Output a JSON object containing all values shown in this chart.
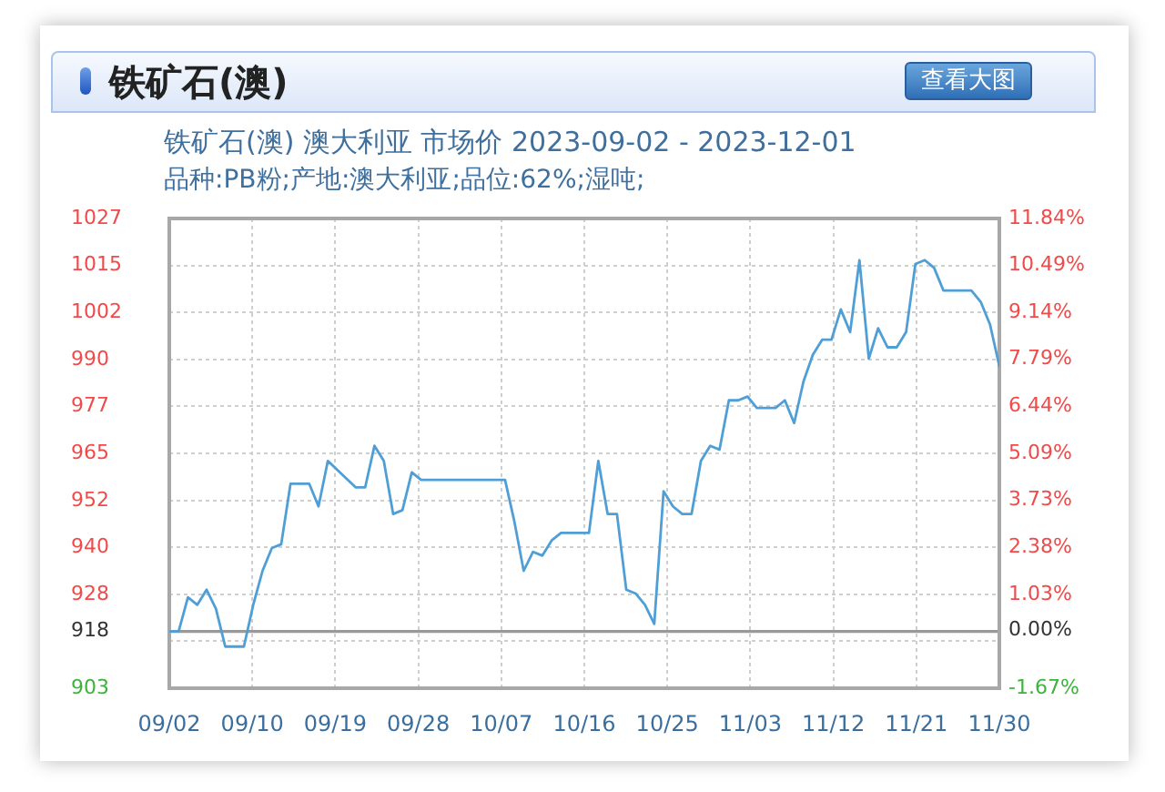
{
  "chart_data": {
    "type": "line",
    "title": "铁矿石(澳)",
    "subtitle": "铁矿石(澳) 澳大利亚 市场价 2023-09-02 - 2023-12-01",
    "annotations": [
      "品种:PB粉;产地:澳大利亚;品位:62%;湿吨;",
      "查看大图"
    ],
    "x": [
      "2023-09-02",
      "2023-09-03",
      "2023-09-04",
      "2023-09-05",
      "2023-09-06",
      "2023-09-07",
      "2023-09-08",
      "2023-09-10",
      "2023-09-11",
      "2023-09-12",
      "2023-09-13",
      "2023-09-14",
      "2023-09-15",
      "2023-09-17",
      "2023-09-18",
      "2023-09-19",
      "2023-09-22",
      "2023-09-23",
      "2023-09-24",
      "2023-09-25",
      "2023-09-26",
      "2023-09-27",
      "2023-09-28",
      "2023-09-29",
      "2023-10-08",
      "2023-10-09",
      "2023-10-10",
      "2023-10-11",
      "2023-10-12",
      "2023-10-13",
      "2023-10-14",
      "2023-10-17",
      "2023-10-18",
      "2023-10-19",
      "2023-10-20",
      "2023-10-21",
      "2023-10-22",
      "2023-10-23",
      "2023-10-24",
      "2023-10-25",
      "2023-10-26",
      "2023-10-27",
      "2023-10-28",
      "2023-10-29",
      "2023-10-30",
      "2023-10-31",
      "2023-11-01",
      "2023-11-02",
      "2023-11-03",
      "2023-11-04",
      "2023-11-06",
      "2023-11-07",
      "2023-11-08",
      "2023-11-09",
      "2023-11-10",
      "2023-11-11",
      "2023-11-12",
      "2023-11-13",
      "2023-11-14",
      "2023-11-15",
      "2023-11-16",
      "2023-11-17",
      "2023-11-18",
      "2023-11-19",
      "2023-11-20",
      "2023-11-21",
      "2023-11-22",
      "2023-11-23",
      "2023-11-24",
      "2023-11-27",
      "2023-11-28",
      "2023-11-29",
      "2023-11-30"
    ],
    "values": [
      918,
      918,
      927,
      925,
      929,
      924,
      914,
      914,
      925,
      934,
      940,
      941,
      957,
      957,
      951,
      963,
      956,
      956,
      967,
      963,
      949,
      950,
      960,
      958,
      958,
      947,
      934,
      939,
      938,
      942,
      944,
      944,
      963,
      949,
      949,
      929,
      928,
      925,
      920,
      955,
      951,
      949,
      949,
      963,
      967,
      966,
      979,
      979,
      980,
      977,
      977,
      979,
      973,
      984,
      991,
      995,
      995,
      1003,
      997,
      1016,
      990,
      998,
      993,
      993,
      997,
      1015,
      1016,
      1014,
      1008,
      1008,
      1005,
      999,
      988
    ],
    "color": "#4f9fd6",
    "xlim": [
      "2023-09-02",
      "2023-11-30"
    ],
    "xticks": [
      {
        "value": "2023-09-02",
        "label": "09/02"
      },
      {
        "value": "2023-09-10T21:36",
        "label": "09/10"
      },
      {
        "value": "2023-09-19T19:12",
        "label": "09/19"
      },
      {
        "value": "2023-09-28T16:48",
        "label": "09/28"
      },
      {
        "value": "2023-10-07T14:24",
        "label": "10/07"
      },
      {
        "value": "2023-10-16T12:00",
        "label": "10/16"
      },
      {
        "value": "2023-10-25T09:36",
        "label": "10/25"
      },
      {
        "value": "2023-11-03T07:12",
        "label": "11/03"
      },
      {
        "value": "2023-11-12T04:48",
        "label": "11/12"
      },
      {
        "value": "2023-11-21T02:24",
        "label": "11/21"
      },
      {
        "value": "2023-11-30",
        "label": "11/30"
      }
    ],
    "ylim": [
      903,
      1027
    ],
    "yticks": [
      903,
      {
        "value": 915.4,
        "label": null
      },
      918,
      {
        "value": 927.8,
        "label": "928"
      },
      {
        "value": 940.2,
        "label": "940"
      },
      {
        "value": 952.4,
        "label": "952"
      },
      965,
      {
        "value": 977.4,
        "label": "977"
      },
      {
        "value": 989.8,
        "label": "990"
      },
      {
        "value": 1002.2,
        "label": "1002"
      },
      {
        "value": 1014.6,
        "label": "1015"
      },
      1027
    ],
    "y2lim": [
      -1.67,
      11.84
    ],
    "y2ticks": [
      {
        "value": -1.67,
        "label": "-1.67%"
      },
      {
        "value": 0,
        "label": "0.00%"
      },
      {
        "value": 1.03,
        "label": "1.03%"
      },
      {
        "value": 2.38,
        "label": "2.38%"
      },
      {
        "value": 3.73,
        "label": "3.73%"
      },
      {
        "value": 5.09,
        "label": "5.09%"
      },
      {
        "value": 6.44,
        "label": "6.44%"
      },
      {
        "value": 7.79,
        "label": "7.79%"
      },
      {
        "value": 9.14,
        "label": "9.14%"
      },
      {
        "value": 10.49,
        "label": "10.49%"
      },
      {
        "value": 11.84,
        "label": "11.84%"
      }
    ],
    "ref_lines": [
      {
        "axis": "y",
        "value": 918,
        "color": "#999999"
      }
    ],
    "grid": true,
    "marker": "none",
    "line_style": "solid"
  }
}
